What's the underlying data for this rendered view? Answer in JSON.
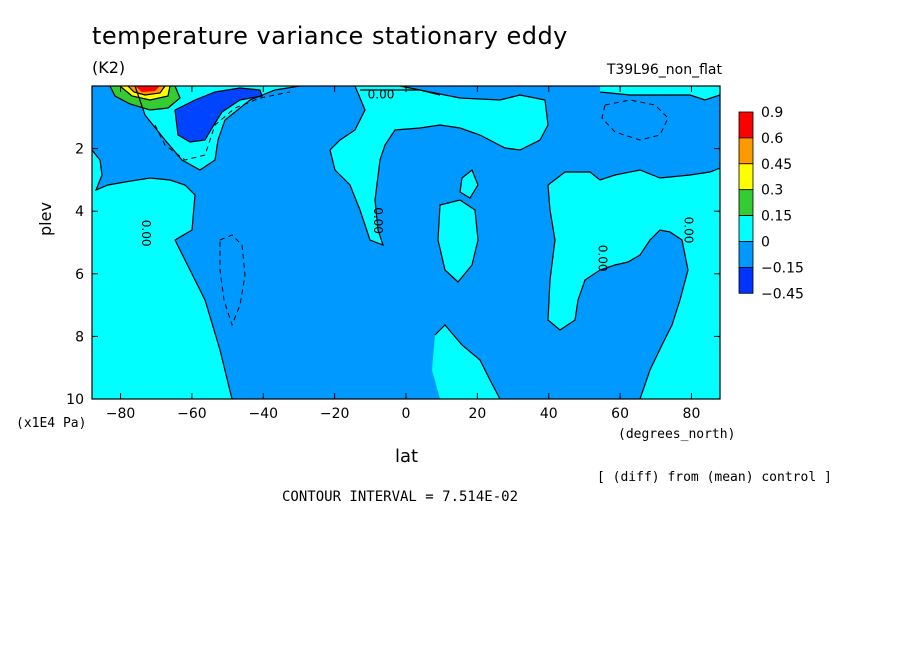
{
  "chart_data": {
    "type": "heatmap",
    "title": "temperature variance stationary eddy",
    "units": "(K2)",
    "run_label": "T39L96_non_flat",
    "xlabel": "lat",
    "xunit": "(degrees_north)",
    "ylabel": "plev",
    "yunit": "(x1E4 Pa)",
    "x_ticks": [
      -80,
      -60,
      -40,
      -20,
      0,
      20,
      40,
      60,
      80
    ],
    "x_tick_labels": [
      "−80",
      "−60",
      "−40",
      "−20",
      "0",
      "20",
      "40",
      "60",
      "80"
    ],
    "y_ticks": [
      2,
      4,
      6,
      8,
      10
    ],
    "y_tick_labels": [
      "2",
      "4",
      "6",
      "8",
      "10"
    ],
    "xlim": [
      -88,
      88
    ],
    "ylim": [
      10,
      0
    ],
    "legend": {
      "placement": "right",
      "levels": [
        "0.9",
        "0.6",
        "0.45",
        "0.3",
        "0.15",
        "0",
        "−0.15",
        "−0.45"
      ],
      "colors": [
        "#ff0000",
        "#ff9900",
        "#ffff00",
        "#33cc33",
        "#00ffff",
        "#0099ff",
        "#0033ff"
      ]
    },
    "background_color": "#0099ff",
    "contour_labels": [
      {
        "text": "0.00",
        "lat": -74,
        "plev": 4.7,
        "rotate": 90
      },
      {
        "text": "0.00",
        "lat": -7,
        "plev": 0.4,
        "rotate": 0
      },
      {
        "text": "0.00",
        "lat": -9,
        "plev": 4.3,
        "rotate": 90
      },
      {
        "text": "0.00",
        "lat": 54,
        "plev": 5.5,
        "rotate": 90
      },
      {
        "text": "0.00",
        "lat": 78,
        "plev": 4.6,
        "rotate": 90
      }
    ],
    "footer": "[ (diff) from (mean) control ]",
    "contour_interval": "CONTOUR INTERVAL = 7.514E-02"
  }
}
